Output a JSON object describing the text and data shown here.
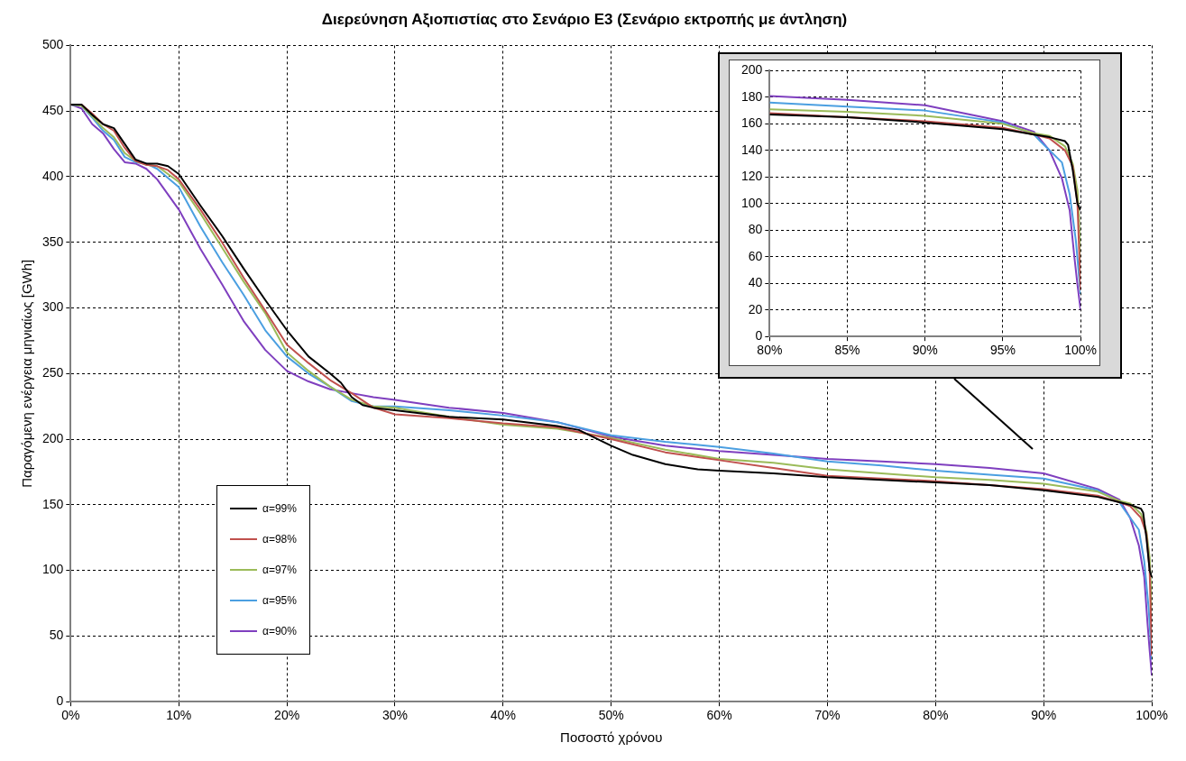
{
  "chart_data": [
    {
      "type": "line",
      "title": "Διερεύνηση Αξιοπιστίας στο Σενάριο Ε3 (Σενάριο εκτροπής με άντληση)",
      "xlabel": "Ποσοστό χρόνου",
      "ylabel": "Παραγόμενη ενέργεια μηνιαίως [GWh]",
      "xlim": [
        0,
        100
      ],
      "xticks": [
        {
          "value": 0,
          "label": "0%"
        },
        {
          "value": 10,
          "label": "10%"
        },
        {
          "value": 20,
          "label": "20%"
        },
        {
          "value": 30,
          "label": "30%"
        },
        {
          "value": 40,
          "label": "40%"
        },
        {
          "value": 50,
          "label": "50%"
        },
        {
          "value": 60,
          "label": "60%"
        },
        {
          "value": 70,
          "label": "70%"
        },
        {
          "value": 80,
          "label": "80%"
        },
        {
          "value": 90,
          "label": "90%"
        },
        {
          "value": 100,
          "label": "100%"
        }
      ],
      "ylim": [
        0,
        500
      ],
      "yticks": [
        0,
        50,
        100,
        150,
        200,
        250,
        300,
        350,
        400,
        450,
        500
      ],
      "grid": true,
      "legend": "bottom left",
      "marker": "none",
      "line_style": "solid",
      "series": [
        {
          "name": "α=99%",
          "color": "#000000",
          "x": [
            0,
            1,
            2,
            3,
            4,
            5,
            6,
            7,
            8,
            9,
            10,
            11,
            12,
            14,
            16,
            18,
            20,
            22,
            24,
            25,
            26,
            27,
            28,
            30,
            35,
            40,
            45,
            47,
            50,
            52,
            55,
            58,
            60,
            65,
            70,
            80,
            85,
            90,
            95,
            97,
            98,
            99,
            99.2,
            99.5,
            99.8,
            100
          ],
          "values": [
            455,
            455,
            447,
            440,
            437,
            425,
            413,
            410,
            410,
            408,
            402,
            390,
            378,
            355,
            330,
            306,
            283,
            263,
            250,
            243,
            232,
            226,
            224,
            222,
            217,
            215,
            210,
            207,
            195,
            188,
            181,
            177,
            176,
            174,
            171,
            167,
            165,
            161,
            156,
            152,
            150,
            147,
            144,
            125,
            100,
            95
          ]
        },
        {
          "name": "α=98%",
          "color": "#c0504d",
          "x": [
            0,
            1,
            2,
            3,
            4,
            5,
            6,
            7,
            8,
            9,
            10,
            12,
            14,
            16,
            18,
            20,
            22,
            24,
            26,
            28,
            30,
            35,
            40,
            45,
            50,
            55,
            60,
            65,
            70,
            75,
            80,
            85,
            90,
            95,
            97,
            98,
            99,
            99.5,
            99.8,
            100
          ],
          "values": [
            455,
            455,
            448,
            440,
            435,
            422,
            412,
            409,
            408,
            405,
            398,
            375,
            350,
            323,
            298,
            272,
            258,
            245,
            235,
            224,
            219,
            216,
            212,
            209,
            200,
            190,
            184,
            178,
            172,
            170,
            168,
            165,
            162,
            157,
            152,
            149,
            140,
            128,
            100,
            35
          ]
        },
        {
          "name": "α=97%",
          "color": "#9bbb59",
          "x": [
            0,
            1,
            2,
            3,
            4,
            5,
            6,
            7,
            8,
            10,
            12,
            14,
            16,
            18,
            20,
            22,
            24,
            26,
            28,
            30,
            35,
            40,
            45,
            50,
            55,
            60,
            65,
            70,
            75,
            80,
            85,
            90,
            95,
            97,
            98,
            99,
            99.5,
            99.8,
            99.9,
            100
          ],
          "values": [
            455,
            454,
            446,
            437,
            430,
            418,
            412,
            409,
            408,
            396,
            372,
            346,
            320,
            296,
            266,
            252,
            240,
            230,
            225,
            224,
            217,
            211,
            208,
            201,
            192,
            185,
            182,
            177,
            174,
            171,
            169,
            166,
            160,
            153,
            151,
            143,
            130,
            110,
            90,
            45
          ]
        },
        {
          "name": "α=95%",
          "color": "#4b9fe1",
          "x": [
            0,
            1,
            2,
            3,
            4,
            5,
            6,
            7,
            8,
            10,
            12,
            14,
            16,
            18,
            20,
            22,
            24,
            26,
            28,
            30,
            35,
            40,
            45,
            50,
            55,
            60,
            65,
            70,
            75,
            80,
            85,
            90,
            95,
            97,
            97.4,
            98.8,
            99.3,
            99.7,
            100
          ],
          "values": [
            455,
            454,
            445,
            435,
            428,
            415,
            411,
            410,
            406,
            392,
            362,
            335,
            310,
            283,
            263,
            250,
            240,
            229,
            225,
            225,
            222,
            218,
            213,
            203,
            198,
            194,
            189,
            183,
            180,
            176,
            173,
            170,
            161,
            152,
            147,
            131,
            107,
            72,
            32
          ]
        },
        {
          "name": "α=90%",
          "color": "#7f3fbf",
          "x": [
            0,
            1,
            2,
            3,
            4,
            5,
            6,
            7,
            8,
            10,
            12,
            14,
            16,
            18,
            20,
            22,
            24,
            26,
            28,
            30,
            35,
            40,
            45,
            50,
            55,
            60,
            65,
            70,
            75,
            80,
            85,
            90,
            95,
            97,
            98,
            98.8,
            99.3,
            99.6,
            99.8,
            100
          ],
          "values": [
            455,
            452,
            440,
            433,
            421,
            411,
            410,
            406,
            398,
            375,
            345,
            318,
            290,
            268,
            252,
            244,
            238,
            235,
            232,
            230,
            224,
            220,
            213,
            202,
            195,
            191,
            188,
            185,
            183,
            181,
            178,
            174,
            162,
            154,
            140,
            119,
            95,
            60,
            39,
            20
          ]
        }
      ]
    },
    {
      "type": "line",
      "xlim": [
        80,
        100
      ],
      "xticks": [
        {
          "value": 80,
          "label": "80%"
        },
        {
          "value": 85,
          "label": "85%"
        },
        {
          "value": 90,
          "label": "90%"
        },
        {
          "value": 95,
          "label": "95%"
        },
        {
          "value": 100,
          "label": "100%"
        }
      ],
      "ylim": [
        0,
        200
      ],
      "yticks": [
        0,
        20,
        40,
        60,
        80,
        100,
        120,
        140,
        160,
        180,
        200
      ],
      "grid": true,
      "marker": "none",
      "line_style": "solid",
      "series": [
        {
          "color": "#000000",
          "x": [
            80,
            85,
            90,
            95,
            97,
            98,
            99,
            99.2,
            99.5,
            99.8,
            100
          ],
          "values": [
            167,
            165,
            161,
            156,
            152,
            150,
            147,
            144,
            125,
            100,
            95
          ]
        },
        {
          "color": "#c0504d",
          "x": [
            80,
            85,
            90,
            95,
            97,
            98,
            99,
            99.5,
            99.8,
            100
          ],
          "values": [
            168,
            165,
            162,
            157,
            152,
            149,
            140,
            128,
            100,
            35
          ]
        },
        {
          "color": "#9bbb59",
          "x": [
            80,
            85,
            90,
            95,
            97,
            98,
            99,
            99.5,
            99.8,
            99.9,
            100
          ],
          "values": [
            171,
            169,
            166,
            160,
            153,
            151,
            143,
            130,
            110,
            90,
            45
          ]
        },
        {
          "color": "#4b9fe1",
          "x": [
            80,
            85,
            90,
            95,
            97,
            97.4,
            98.8,
            99.3,
            99.7,
            100
          ],
          "values": [
            176,
            173,
            170,
            161,
            152,
            147,
            131,
            107,
            72,
            32
          ]
        },
        {
          "color": "#7f3fbf",
          "x": [
            80,
            85,
            90,
            95,
            97,
            98,
            98.8,
            99.3,
            99.6,
            99.8,
            100
          ],
          "values": [
            181,
            178,
            174,
            162,
            154,
            140,
            119,
            95,
            60,
            39,
            20
          ]
        }
      ]
    }
  ]
}
